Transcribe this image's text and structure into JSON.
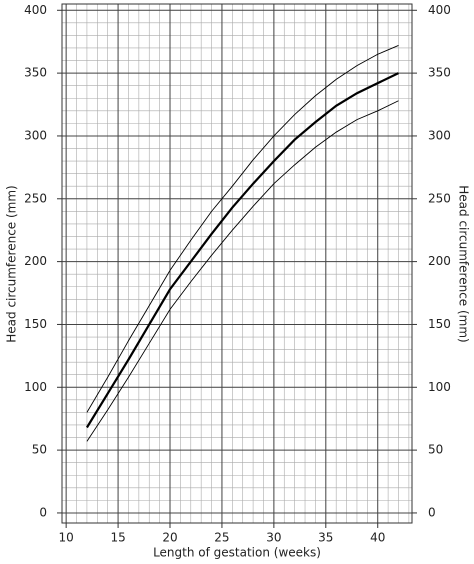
{
  "chart_data": {
    "type": "line",
    "xlabel": "Length of gestation (weeks)",
    "ylabel": "Head circumference (mm)",
    "y2label": "Head circumference (mm)",
    "x": [
      12,
      14,
      16,
      18,
      20,
      22,
      24,
      26,
      28,
      30,
      32,
      34,
      36,
      38,
      40,
      42
    ],
    "series": [
      {
        "color": "#000000",
        "width": 0.9,
        "values": [
          80,
          108,
          137,
          165,
          193,
          217,
          240,
          260,
          281,
          300,
          317,
          332,
          345,
          356,
          365,
          372
        ]
      },
      {
        "color": "#000000",
        "width": 2.2,
        "values": [
          68,
          95,
          122,
          150,
          178,
          200,
          222,
          243,
          262,
          280,
          297,
          311,
          324,
          334,
          342,
          350
        ]
      },
      {
        "color": "#000000",
        "width": 0.9,
        "values": [
          57,
          82,
          108,
          135,
          162,
          184,
          205,
          225,
          244,
          262,
          277,
          291,
          303,
          313,
          320,
          328
        ]
      }
    ],
    "xlim": [
      9.6,
      43.3
    ],
    "ylim": [
      -8,
      405
    ],
    "y2lim": [
      -8,
      405
    ],
    "xticks": [
      10,
      15,
      20,
      25,
      30,
      35,
      40
    ],
    "yticks": [
      0,
      50,
      100,
      150,
      200,
      250,
      300,
      350,
      400
    ],
    "y2ticks": [
      0,
      50,
      100,
      150,
      200,
      250,
      300,
      350,
      400
    ],
    "grid": true,
    "minor_divisions": 5
  }
}
